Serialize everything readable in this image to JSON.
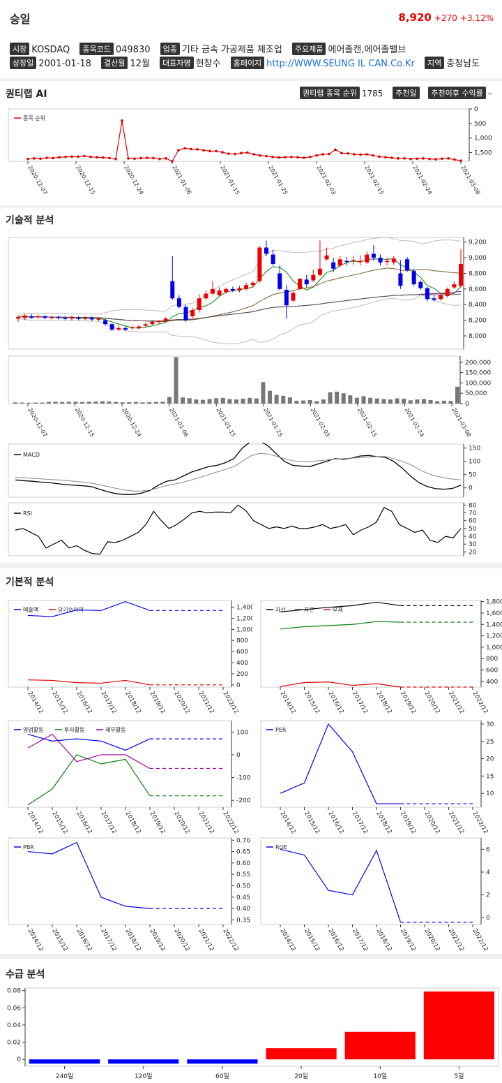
{
  "header": {
    "name": "승일",
    "price": "8,920",
    "change": "+270",
    "change_pct": "+3.12%",
    "info1": [
      {
        "tag": "시장",
        "value": "KOSDAQ"
      },
      {
        "tag": "종목코드",
        "value": "049830"
      },
      {
        "tag": "업종",
        "value": "기타 금속 가공제품 제조업"
      },
      {
        "tag": "주요제품",
        "value": "에어졸캔,에어졸밸브"
      }
    ],
    "info2": [
      {
        "tag": "상장일",
        "value": "2001-01-18"
      },
      {
        "tag": "결산월",
        "value": "12월"
      },
      {
        "tag": "대표자명",
        "value": "현창수"
      },
      {
        "tag": "홈페이지",
        "value": "http://WWW.SEUNG IL CAN.Co.Kr"
      },
      {
        "tag": "지역",
        "value": "충청남도"
      }
    ]
  },
  "quantilab": {
    "title": "퀀티랩 AI",
    "rank_tag": "퀀티랩 종목 순위",
    "rank_value": "1785",
    "rec_date_tag": "추천일",
    "rec_return_tag": "추천이후 수익률",
    "rec_return_value": "–"
  },
  "sections": {
    "technical": "기술적 분석",
    "fundamental": "기본적 분석",
    "supply": "수급 분석"
  },
  "chart_data": [
    {
      "type": "line",
      "legend": [
        "종목 순위"
      ],
      "x_ticks": [
        "2020-12-07",
        "2020-12-15",
        "2020-12-24",
        "2021-01-06",
        "2021-01-15",
        "2021-01-25",
        "2021-02-03",
        "2021-02-15",
        "2021-02-24",
        "2021-03-08"
      ],
      "y_ticks": [
        "0",
        "500",
        "1,000",
        "1,500"
      ],
      "ylim": [
        0,
        1800
      ],
      "inverted": true,
      "series": [
        {
          "name": "종목 순위",
          "values": [
            1720,
            1700,
            1710,
            1680,
            1690,
            1660,
            1650,
            1640,
            1640,
            1620,
            1650,
            1660,
            1670,
            1690,
            1720,
            400,
            1700,
            1710,
            1690,
            1680,
            1690,
            1720,
            1700,
            1800,
            1420,
            1350,
            1380,
            1390,
            1420,
            1450,
            1450,
            1490,
            1540,
            1550,
            1520,
            1500,
            1560,
            1600,
            1620,
            1650,
            1670,
            1660,
            1650,
            1660,
            1680,
            1650,
            1600,
            1560,
            1550,
            1400,
            1520,
            1530,
            1560,
            1570,
            1560,
            1600,
            1640,
            1660,
            1680,
            1700,
            1700,
            1720,
            1710,
            1700,
            1720,
            1730,
            1710,
            1700,
            1740,
            1780
          ]
        }
      ]
    },
    {
      "type": "candlestick",
      "y_ticks": [
        "8,000",
        "8,200",
        "8,400",
        "8,600",
        "8,800",
        "9,000",
        "9,200"
      ],
      "ylim": [
        7830,
        9260
      ],
      "candles": [
        [
          8220,
          8240,
          8180,
          8260
        ],
        [
          8230,
          8260,
          8200,
          8280
        ],
        [
          8250,
          8230,
          8220,
          8280
        ],
        [
          8240,
          8250,
          8220,
          8270
        ],
        [
          8250,
          8230,
          8210,
          8270
        ],
        [
          8230,
          8240,
          8210,
          8260
        ],
        [
          8240,
          8230,
          8210,
          8260
        ],
        [
          8230,
          8220,
          8200,
          8250
        ],
        [
          8220,
          8240,
          8200,
          8260
        ],
        [
          8230,
          8220,
          8200,
          8250
        ],
        [
          8220,
          8230,
          8200,
          8250
        ],
        [
          8230,
          8210,
          8190,
          8250
        ],
        [
          8210,
          8220,
          8190,
          8240
        ],
        [
          8200,
          8150,
          8130,
          8220
        ],
        [
          8150,
          8080,
          8060,
          8160
        ],
        [
          8080,
          8100,
          8060,
          8130
        ],
        [
          8100,
          8080,
          8060,
          8120
        ],
        [
          8100,
          8110,
          8080,
          8130
        ],
        [
          8100,
          8120,
          8080,
          8140
        ],
        [
          8130,
          8150,
          8110,
          8170
        ],
        [
          8150,
          8180,
          8140,
          8200
        ],
        [
          8180,
          8190,
          8150,
          8200
        ],
        [
          8190,
          8220,
          8170,
          8240
        ],
        [
          8700,
          8480,
          8460,
          9020
        ],
        [
          8480,
          8370,
          8350,
          8520
        ],
        [
          8370,
          8200,
          8180,
          8400
        ],
        [
          8250,
          8330,
          8230,
          8360
        ],
        [
          8330,
          8480,
          8300,
          8530
        ],
        [
          8480,
          8540,
          8460,
          8580
        ],
        [
          8540,
          8600,
          8520,
          8700
        ],
        [
          8520,
          8580,
          8500,
          8620
        ],
        [
          8560,
          8600,
          8540,
          8620
        ],
        [
          8600,
          8580,
          8560,
          8630
        ],
        [
          8580,
          8610,
          8560,
          8640
        ],
        [
          8600,
          8650,
          8580,
          8680
        ],
        [
          8650,
          8680,
          8620,
          8700
        ],
        [
          8700,
          9130,
          8680,
          9150
        ],
        [
          9130,
          9050,
          9020,
          9220
        ],
        [
          9040,
          8920,
          8900,
          9100
        ],
        [
          8800,
          8600,
          8580,
          8900
        ],
        [
          8590,
          8390,
          8220,
          8650
        ],
        [
          8450,
          8550,
          8430,
          8580
        ],
        [
          8600,
          8730,
          8580,
          8740
        ],
        [
          8720,
          8660,
          8620,
          8780
        ],
        [
          8710,
          8780,
          8690,
          8850
        ],
        [
          8780,
          8860,
          8760,
          9220
        ],
        [
          8980,
          9030,
          8960,
          9130
        ],
        [
          8940,
          8860,
          8820,
          9000
        ],
        [
          8900,
          8980,
          8880,
          9020
        ],
        [
          8960,
          8950,
          8900,
          9010
        ],
        [
          8960,
          8970,
          8910,
          9020
        ],
        [
          8950,
          8960,
          8900,
          9030
        ],
        [
          8940,
          9040,
          8920,
          9080
        ],
        [
          9050,
          9000,
          8960,
          9160
        ],
        [
          9000,
          8940,
          8900,
          9040
        ],
        [
          8950,
          8960,
          8900,
          9000
        ],
        [
          8940,
          8990,
          8910,
          9020
        ],
        [
          8800,
          8640,
          8600,
          8970
        ],
        [
          8980,
          8840,
          8820,
          9010
        ],
        [
          8830,
          8660,
          8640,
          8860
        ],
        [
          8690,
          8610,
          8590,
          8710
        ],
        [
          8610,
          8470,
          8440,
          8630
        ],
        [
          8480,
          8460,
          8440,
          8520
        ],
        [
          8470,
          8520,
          8450,
          8540
        ],
        [
          8510,
          8600,
          8490,
          8620
        ],
        [
          8620,
          8660,
          8600,
          8700
        ],
        [
          8640,
          8920,
          8620,
          9110
        ]
      ]
    },
    {
      "type": "bar",
      "x_ticks": [
        "2020-12-07",
        "2020-12-15",
        "2020-12-24",
        "2021-01-06",
        "2021-01-15",
        "2021-01-25",
        "2021-02-03",
        "2021-02-15",
        "2021-02-24",
        "2021-03-08"
      ],
      "y_ticks": [
        "0",
        "50,000",
        "100,000",
        "150,000",
        "200,000"
      ],
      "ylim": [
        0,
        230000
      ],
      "values": [
        6000,
        5000,
        4000,
        5000,
        5000,
        8000,
        9000,
        8000,
        9000,
        9000,
        8000,
        9000,
        10000,
        12000,
        10000,
        8000,
        6000,
        7000,
        8000,
        6000,
        7000,
        8000,
        9000,
        32000,
        225000,
        30000,
        26000,
        20000,
        18000,
        22000,
        26000,
        28000,
        22000,
        20000,
        24000,
        28000,
        25000,
        104000,
        62000,
        42000,
        38000,
        30000,
        14000,
        15000,
        17000,
        12000,
        20000,
        55000,
        58000,
        50000,
        40000,
        28000,
        36000,
        28000,
        25000,
        22000,
        20000,
        25000,
        24000,
        16000,
        20000,
        22000,
        17000,
        12000,
        14000,
        13000,
        82000
      ]
    },
    {
      "type": "line",
      "legend": [
        "MACD"
      ],
      "y_ticks": [
        "0",
        "50",
        "100",
        "150"
      ],
      "ylim": [
        -35,
        165
      ],
      "series": [
        {
          "name": "MACD",
          "values": [
            30,
            27,
            25,
            22,
            20,
            16,
            12,
            10,
            8,
            5,
            -5,
            -15,
            -22,
            -25,
            -25,
            -20,
            -10,
            10,
            25,
            30,
            45,
            60,
            70,
            80,
            85,
            95,
            110,
            150,
            175,
            178,
            160,
            130,
            100,
            85,
            82,
            80,
            90,
            100,
            110,
            108,
            112,
            120,
            122,
            118,
            115,
            100,
            75,
            45,
            20,
            5,
            -3,
            -5,
            -2,
            10
          ]
        },
        {
          "name": "signal",
          "values": [
            40,
            38,
            36,
            34,
            32,
            30,
            28,
            25,
            22,
            18,
            12,
            5,
            -2,
            -8,
            -12,
            -12,
            -8,
            0,
            8,
            15,
            22,
            30,
            40,
            50,
            60,
            70,
            80,
            100,
            120,
            130,
            128,
            120,
            110,
            102,
            100,
            100,
            102,
            105,
            108,
            110,
            112,
            114,
            116,
            118,
            118,
            110,
            100,
            88,
            70,
            55,
            45,
            38,
            33,
            30
          ]
        }
      ]
    },
    {
      "type": "line",
      "legend": [
        "RSI"
      ],
      "y_ticks": [
        "20",
        "30",
        "40",
        "50",
        "60",
        "70",
        "80"
      ],
      "ylim": [
        15,
        83
      ],
      "values": [
        48,
        50,
        45,
        40,
        25,
        30,
        35,
        25,
        28,
        22,
        18,
        17,
        33,
        32,
        35,
        40,
        45,
        55,
        72,
        60,
        50,
        55,
        62,
        70,
        72,
        70,
        71,
        71,
        70,
        80,
        73,
        60,
        55,
        50,
        52,
        50,
        53,
        50,
        50,
        52,
        55,
        50,
        52,
        55,
        42,
        48,
        52,
        58,
        77,
        72,
        55,
        50,
        45,
        48,
        35,
        32,
        40,
        38,
        50
      ]
    },
    {
      "type": "line",
      "legend": [
        "매출액",
        "당기순이익"
      ],
      "x_ticks": [
        "2014/12",
        "2015/12",
        "2016/12",
        "2017/12",
        "2018/12",
        "2019/12",
        "2020/12",
        "2021/12",
        "2022/12"
      ],
      "y_ticks": [
        "0",
        "200",
        "400",
        "600",
        "800",
        "1,000",
        "1,200",
        "1,400"
      ],
      "ylim": [
        -40,
        1520
      ],
      "series": [
        {
          "name": "매출액",
          "values": [
            1250,
            1230,
            1350,
            1340,
            1500,
            1340,
            1340,
            1340,
            1340
          ]
        },
        {
          "name": "당기순이익",
          "values": [
            90,
            80,
            40,
            30,
            80,
            0,
            0,
            0,
            0
          ]
        }
      ]
    },
    {
      "type": "line",
      "legend": [
        "자산",
        "자본",
        "부채"
      ],
      "x_ticks": [
        "2014/12",
        "2015/12",
        "2016/12",
        "2017/12",
        "2018/12",
        "2019/12",
        "2020/12",
        "2021/12",
        "2022/12"
      ],
      "y_ticks": [
        "400",
        "600",
        "800",
        "1,000",
        "1,200",
        "1,400",
        "1,600",
        "1,800"
      ],
      "ylim": [
        300,
        1820
      ],
      "series": [
        {
          "name": "자산",
          "values": [
            1620,
            1660,
            1700,
            1730,
            1790,
            1730,
            1730,
            1730,
            1730
          ]
        },
        {
          "name": "자본",
          "values": [
            1320,
            1360,
            1380,
            1400,
            1450,
            1440,
            1440,
            1440,
            1440
          ]
        },
        {
          "name": "부채",
          "values": [
            310,
            380,
            390,
            330,
            360,
            300,
            300,
            300,
            300
          ]
        }
      ]
    },
    {
      "type": "line",
      "legend": [
        "영업활동",
        "투자활동",
        "재무활동"
      ],
      "x_ticks": [
        "2014/12",
        "2015/12",
        "2016/12",
        "2017/12",
        "2018/12",
        "2019/12",
        "2020/12",
        "2021/12",
        "2022/12"
      ],
      "y_ticks": [
        "-200",
        "-100",
        "0",
        "100"
      ],
      "ylim": [
        -230,
        150
      ],
      "series": [
        {
          "name": "영업활동",
          "values": [
            90,
            60,
            70,
            60,
            20,
            70,
            70,
            70,
            70
          ]
        },
        {
          "name": "투자활동",
          "values": [
            -220,
            -150,
            0,
            -40,
            -20,
            -180,
            -180,
            -180,
            -180
          ]
        },
        {
          "name": "재무활동",
          "values": [
            30,
            90,
            -30,
            0,
            0,
            -60,
            -60,
            -60,
            -60
          ]
        }
      ]
    },
    {
      "type": "line",
      "legend": [
        "PER"
      ],
      "x_ticks": [
        "2014/12",
        "2015/12",
        "2016/12",
        "2017/12",
        "2018/12",
        "2019/12",
        "2020/12",
        "2021/12",
        "2022/12"
      ],
      "y_ticks": [
        "10",
        "15",
        "20",
        "25",
        "30"
      ],
      "ylim": [
        6,
        31
      ],
      "series": [
        {
          "name": "PER",
          "values": [
            10,
            13,
            30,
            22,
            7,
            7,
            7,
            7,
            7
          ]
        }
      ]
    },
    {
      "type": "line",
      "legend": [
        "PBR"
      ],
      "x_ticks": [
        "2014/12",
        "2015/12",
        "2016/12",
        "2017/12",
        "2018/12",
        "2019/12",
        "2020/12",
        "2021/12",
        "2022/12"
      ],
      "y_ticks": [
        "0.35",
        "0.40",
        "0.45",
        "0.50",
        "0.55",
        "0.60",
        "0.65",
        "0.70"
      ],
      "ylim": [
        0.33,
        0.71
      ],
      "series": [
        {
          "name": "PBR",
          "values": [
            0.65,
            0.64,
            0.69,
            0.45,
            0.41,
            0.4,
            0.4,
            0.4,
            0.4
          ]
        }
      ]
    },
    {
      "type": "line",
      "legend": [
        "ROE"
      ],
      "x_ticks": [
        "2014/12",
        "2015/12",
        "2016/12",
        "2017/12",
        "2018/12",
        "2019/12",
        "2020/12",
        "2021/12",
        "2022/12"
      ],
      "y_ticks": [
        "0",
        "2",
        "4",
        "6"
      ],
      "ylim": [
        -0.6,
        7
      ],
      "series": [
        {
          "name": "ROE",
          "values": [
            6.0,
            5.5,
            2.4,
            2.0,
            5.9,
            -0.4,
            -0.4,
            -0.4,
            -0.4
          ]
        }
      ]
    },
    {
      "type": "bar",
      "categories": [
        "240일",
        "120일",
        "60일",
        "20일",
        "10일",
        "5일"
      ],
      "values": [
        -0.005,
        -0.005,
        -0.005,
        0.013,
        0.032,
        0.079
      ],
      "y_ticks": [
        "0",
        "0.02",
        "0.04",
        "0.06",
        "0.08"
      ],
      "ylim": [
        -0.008,
        0.083
      ]
    }
  ]
}
